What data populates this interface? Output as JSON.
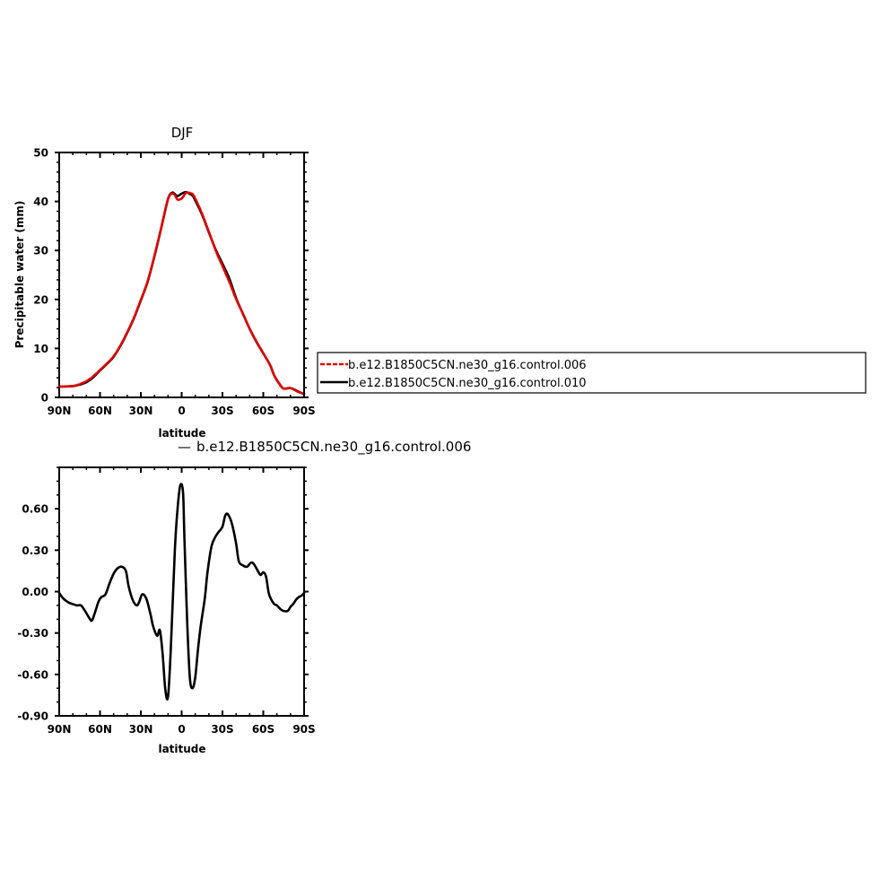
{
  "chart_data": [
    {
      "type": "line",
      "title": "DJF",
      "xlabel": "latitude",
      "ylabel": "Precipitable water (mm)",
      "xlim": [
        -90,
        90
      ],
      "ylim": [
        0,
        50
      ],
      "x_ticks": [
        "90N",
        "60N",
        "30N",
        "0",
        "30S",
        "60S",
        "90S"
      ],
      "y_ticks": [
        "0",
        "10",
        "20",
        "30",
        "40",
        "50"
      ],
      "legend_position": "right",
      "series": [
        {
          "name": "b.e12.B1850C5CN.ne30_g16.control.006",
          "color": "#e00000",
          "dash": "dashed",
          "x": [
            -90,
            -80,
            -75,
            -70,
            -65,
            -60,
            -55,
            -50,
            -45,
            -40,
            -35,
            -30,
            -25,
            -20,
            -15,
            -10,
            -7,
            -5,
            -3,
            0,
            3,
            5,
            8,
            10,
            15,
            20,
            25,
            30,
            35,
            40,
            45,
            50,
            55,
            60,
            65,
            68,
            72,
            75,
            80,
            85,
            88,
            90
          ],
          "values": [
            2.2,
            2.3,
            2.7,
            3.3,
            4.3,
            5.6,
            6.9,
            8.4,
            10.6,
            13.3,
            16.3,
            19.9,
            23.7,
            28.9,
            34.6,
            40.5,
            41.6,
            41.3,
            40.4,
            40.6,
            41.7,
            41.8,
            41.5,
            40.6,
            37.5,
            33.8,
            30.0,
            26.8,
            23.6,
            20.1,
            17.1,
            14.0,
            11.4,
            9.0,
            6.6,
            4.5,
            2.7,
            1.8,
            1.9,
            1.2,
            0.9,
            0.7
          ]
        },
        {
          "name": "b.e12.B1850C5CN.ne30_g16.control.010",
          "color": "#000000",
          "dash": "solid",
          "x": [
            -90,
            -80,
            -75,
            -70,
            -65,
            -60,
            -55,
            -50,
            -45,
            -40,
            -35,
            -30,
            -25,
            -20,
            -15,
            -10,
            -7,
            -5,
            -3,
            0,
            3,
            5,
            8,
            10,
            15,
            20,
            25,
            30,
            35,
            40,
            45,
            50,
            55,
            60,
            65,
            68,
            72,
            75,
            80,
            85,
            88,
            90
          ],
          "values": [
            2.2,
            2.3,
            2.6,
            3.1,
            4.1,
            5.5,
            6.8,
            8.3,
            10.5,
            13.2,
            16.2,
            19.8,
            23.6,
            28.8,
            34.6,
            40.5,
            41.8,
            41.5,
            41.1,
            41.6,
            41.9,
            41.7,
            41.2,
            40.2,
            37.3,
            33.7,
            30.2,
            27.3,
            24.3,
            20.3,
            17.1,
            14.0,
            11.3,
            9.0,
            6.6,
            4.5,
            2.7,
            1.8,
            1.9,
            1.3,
            0.9,
            0.7
          ]
        }
      ]
    },
    {
      "type": "line",
      "title": "b.e12.B1850C5CN.ne30_g16.control.006",
      "title_prefix": "—",
      "xlabel": "latitude",
      "ylabel": "",
      "xlim": [
        -90,
        90
      ],
      "ylim": [
        -0.9,
        0.9
      ],
      "x_ticks": [
        "90N",
        "60N",
        "30N",
        "0",
        "30S",
        "60S",
        "90S"
      ],
      "y_ticks": [
        "0.60",
        "0.30",
        "0.00",
        "-0.30",
        "-0.60",
        "-0.90"
      ],
      "series": [
        {
          "color": "#000000",
          "dash": "solid",
          "x": [
            -90,
            -87,
            -83,
            -80,
            -77,
            -74,
            -71,
            -68,
            -66,
            -64,
            -61,
            -59,
            -56,
            -53,
            -50,
            -47,
            -44,
            -41,
            -39,
            -36,
            -33,
            -31,
            -29,
            -26,
            -23,
            -21,
            -18,
            -16,
            -14,
            -12,
            -10,
            -8,
            -5,
            -3,
            -1,
            1,
            2,
            4,
            6,
            8,
            10,
            12,
            14,
            17,
            19,
            22,
            25,
            27,
            30,
            32,
            34,
            37,
            40,
            42,
            45,
            48,
            51,
            53,
            56,
            58,
            60,
            62,
            64,
            66,
            68,
            70,
            73,
            75,
            78,
            80,
            82,
            84,
            86,
            88,
            90
          ],
          "values": [
            -0.01,
            -0.05,
            -0.08,
            -0.09,
            -0.1,
            -0.1,
            -0.14,
            -0.19,
            -0.21,
            -0.16,
            -0.07,
            -0.04,
            -0.02,
            0.06,
            0.13,
            0.17,
            0.18,
            0.15,
            0.04,
            -0.06,
            -0.1,
            -0.07,
            -0.02,
            -0.05,
            -0.16,
            -0.25,
            -0.32,
            -0.28,
            -0.45,
            -0.71,
            -0.76,
            -0.42,
            0.3,
            0.6,
            0.77,
            0.72,
            0.4,
            -0.2,
            -0.62,
            -0.7,
            -0.62,
            -0.42,
            -0.25,
            -0.05,
            0.14,
            0.33,
            0.4,
            0.43,
            0.47,
            0.55,
            0.56,
            0.49,
            0.35,
            0.22,
            0.19,
            0.18,
            0.21,
            0.2,
            0.15,
            0.12,
            0.14,
            0.11,
            -0.01,
            -0.06,
            -0.09,
            -0.1,
            -0.13,
            -0.14,
            -0.14,
            -0.11,
            -0.09,
            -0.06,
            -0.04,
            -0.03,
            -0.01
          ]
        }
      ]
    }
  ]
}
